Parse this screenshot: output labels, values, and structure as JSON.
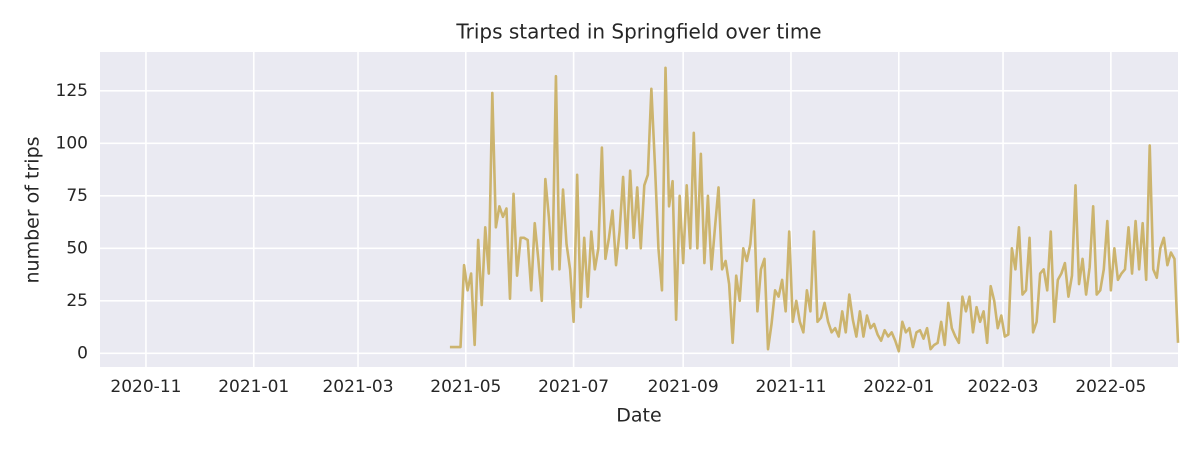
{
  "chart_data": {
    "type": "line",
    "title": "Trips started in Springfield over time",
    "x_label": "Date",
    "y_label": "number of trips",
    "x": [
      172,
      174,
      176,
      178,
      180,
      182,
      184,
      186,
      188,
      190,
      192,
      194,
      196,
      198,
      200,
      202,
      204,
      206,
      208,
      210,
      212,
      214,
      216,
      218,
      220,
      222,
      224,
      226,
      228,
      230,
      232,
      234,
      236,
      238,
      240,
      242,
      244,
      246,
      248,
      250,
      252,
      254,
      256,
      258,
      260,
      262,
      264,
      266,
      268,
      270,
      272,
      274,
      276,
      278,
      280,
      282,
      284,
      286,
      288,
      290,
      292,
      294,
      296,
      298,
      300,
      302,
      304,
      306,
      308,
      310,
      312,
      314,
      316,
      318,
      320,
      322,
      324,
      326,
      328,
      330,
      332,
      334,
      336,
      338,
      340,
      342,
      344,
      346,
      348,
      350,
      352,
      354,
      356,
      358,
      360,
      362,
      364,
      366,
      368,
      370,
      372,
      374,
      376,
      378,
      380,
      382,
      384,
      386,
      388,
      390,
      392,
      394,
      396,
      398,
      400,
      402,
      404,
      406,
      408,
      410,
      412,
      414,
      416,
      418,
      420,
      422,
      424,
      426,
      428,
      430,
      432,
      434,
      436,
      438,
      440,
      442,
      444,
      446,
      448,
      450,
      452,
      454,
      456,
      458,
      460,
      462,
      464,
      466,
      468,
      470,
      472,
      474,
      476,
      478,
      480,
      482,
      484,
      486,
      488,
      490,
      492,
      494,
      496,
      498,
      500,
      502,
      504,
      506,
      508,
      510,
      512,
      514,
      516,
      518,
      520,
      522,
      524,
      526,
      528,
      530,
      532,
      534,
      536,
      538,
      540,
      542,
      544,
      546,
      548,
      550,
      552,
      554,
      556,
      558,
      560,
      562,
      564,
      566,
      568,
      570,
      572,
      574,
      576,
      578,
      580,
      582,
      584
    ],
    "series": [
      {
        "name": "trips",
        "color": "#ccb46e",
        "values": [
          3,
          3,
          3,
          3,
          42,
          30,
          38,
          4,
          54,
          23,
          60,
          38,
          124,
          60,
          70,
          65,
          69,
          26,
          76,
          37,
          55,
          55,
          54,
          30,
          62,
          45,
          25,
          83,
          65,
          40,
          132,
          40,
          78,
          52,
          40,
          15,
          85,
          22,
          55,
          27,
          58,
          40,
          50,
          98,
          45,
          55,
          68,
          42,
          58,
          84,
          50,
          87,
          55,
          79,
          50,
          80,
          85,
          126,
          90,
          50,
          30,
          136,
          70,
          82,
          16,
          75,
          43,
          80,
          50,
          105,
          50,
          95,
          43,
          75,
          40,
          60,
          79,
          40,
          44,
          33,
          5,
          37,
          25,
          50,
          44,
          52,
          73,
          20,
          40,
          45,
          2,
          14,
          30,
          27,
          35,
          20,
          58,
          15,
          25,
          15,
          10,
          30,
          20,
          58,
          15,
          17,
          24,
          15,
          10,
          12,
          8,
          20,
          10,
          28,
          16,
          8,
          20,
          8,
          18,
          12,
          14,
          9,
          6,
          11,
          8,
          10,
          6,
          1,
          15,
          10,
          12,
          3,
          10,
          11,
          7,
          12,
          2,
          4,
          5,
          15,
          4,
          24,
          12,
          8,
          5,
          27,
          20,
          27,
          10,
          22,
          15,
          20,
          5,
          32,
          25,
          12,
          18,
          8,
          9,
          50,
          40,
          60,
          28,
          30,
          55,
          10,
          15,
          38,
          40,
          30,
          58,
          15,
          35,
          38,
          43,
          27,
          37,
          80,
          33,
          45,
          28,
          41,
          70,
          28,
          30,
          40,
          63,
          30,
          50,
          35,
          38,
          40,
          60,
          38,
          63,
          40,
          62,
          35,
          99,
          40,
          36,
          50,
          55,
          42,
          48,
          45,
          5
        ]
      }
    ],
    "xlim": [
      -26,
      584
    ],
    "xticks": [
      {
        "value": 0,
        "label": "2020-11"
      },
      {
        "value": 61,
        "label": "2021-01"
      },
      {
        "value": 120,
        "label": "2021-03"
      },
      {
        "value": 181,
        "label": "2021-05"
      },
      {
        "value": 242,
        "label": "2021-07"
      },
      {
        "value": 304,
        "label": "2021-09"
      },
      {
        "value": 365,
        "label": "2021-11"
      },
      {
        "value": 426,
        "label": "2022-01"
      },
      {
        "value": 485,
        "label": "2022-03"
      },
      {
        "value": 546,
        "label": "2022-05"
      }
    ],
    "ylim": [
      -6.5,
      143.5
    ],
    "yticks": [
      0,
      25,
      50,
      75,
      100,
      125
    ],
    "grid": true
  }
}
